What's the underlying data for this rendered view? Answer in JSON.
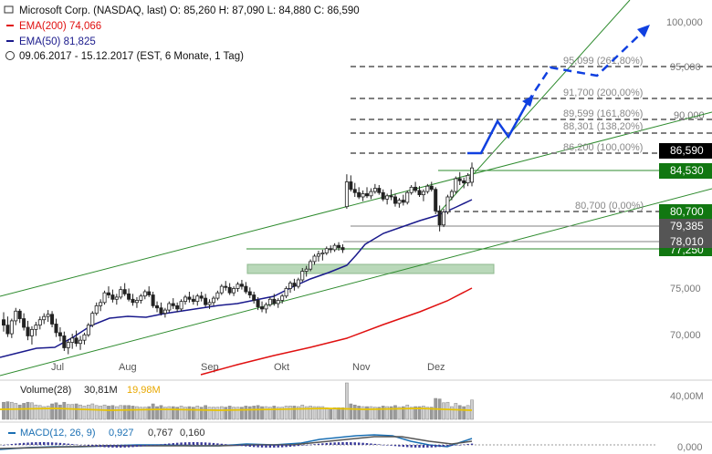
{
  "header": {
    "line1": "Microsoft Corp. (NASDAQ, last)  O: 85,260  H: 87,090  L: 84,880  C: 86,590",
    "ema200": "EMA(200)  74,066",
    "ema50": "EMA(50)  81,825",
    "range": "09.06.2017 - 15.12.2017  (EST, 6 Monate, 1 Tag)"
  },
  "colors": {
    "ema200": "#e01010",
    "ema50": "#1a1a8c",
    "trend": "#2e8b2e",
    "fib": "#808080",
    "projection": "#1040e0",
    "last_price_box": "#000000",
    "support_box": "#117711",
    "zone": "#b9d8b9"
  },
  "chart_data": {
    "type": "candlestick",
    "x_labels": [
      "Jul",
      "Aug",
      "Sep",
      "Okt",
      "Nov",
      "Dez"
    ],
    "y_ticks": [
      "100,000",
      "95,000",
      "90,000",
      "75,000",
      "70,000"
    ],
    "ylim": [
      68.5,
      101.5
    ],
    "candles": [
      [
        72.5,
        73.2,
        71.4,
        72.0
      ],
      [
        72.0,
        72.8,
        70.9,
        71.2
      ],
      [
        71.2,
        72.6,
        70.8,
        72.4
      ],
      [
        72.4,
        73.6,
        72.0,
        73.3
      ],
      [
        73.3,
        73.5,
        72.2,
        72.6
      ],
      [
        72.6,
        73.1,
        71.5,
        71.8
      ],
      [
        71.8,
        72.4,
        70.6,
        71.0
      ],
      [
        71.0,
        71.9,
        70.2,
        71.6
      ],
      [
        71.6,
        72.3,
        71.0,
        72.0
      ],
      [
        72.0,
        72.8,
        71.6,
        72.5
      ],
      [
        72.5,
        73.1,
        72.1,
        72.8
      ],
      [
        72.8,
        73.4,
        72.3,
        73.0
      ],
      [
        73.0,
        73.3,
        71.8,
        72.1
      ],
      [
        72.1,
        72.6,
        70.9,
        71.3
      ],
      [
        71.3,
        71.8,
        70.5,
        71.0
      ],
      [
        71.0,
        71.4,
        69.6,
        69.9
      ],
      [
        69.9,
        70.7,
        69.3,
        70.4
      ],
      [
        70.4,
        71.2,
        69.8,
        70.8
      ],
      [
        70.8,
        71.5,
        70.0,
        70.3
      ],
      [
        70.3,
        71.0,
        69.7,
        70.6
      ],
      [
        70.6,
        71.3,
        70.2,
        71.1
      ],
      [
        71.1,
        72.2,
        70.9,
        72.0
      ],
      [
        72.0,
        73.3,
        71.8,
        73.1
      ],
      [
        73.1,
        74.1,
        72.9,
        73.8
      ],
      [
        73.8,
        74.4,
        73.3,
        74.1
      ],
      [
        74.1,
        75.2,
        73.9,
        75.0
      ],
      [
        75.0,
        75.6,
        74.5,
        74.8
      ],
      [
        74.8,
        75.3,
        74.1,
        74.4
      ],
      [
        74.4,
        74.9,
        73.9,
        74.6
      ],
      [
        74.6,
        75.6,
        74.4,
        75.3
      ],
      [
        75.3,
        75.9,
        74.7,
        74.9
      ],
      [
        74.9,
        75.4,
        74.2,
        74.4
      ],
      [
        74.4,
        74.9,
        73.8,
        74.1
      ],
      [
        74.1,
        74.6,
        73.6,
        74.3
      ],
      [
        74.3,
        74.9,
        74.0,
        74.7
      ],
      [
        74.7,
        75.3,
        74.4,
        75.1
      ],
      [
        75.1,
        75.6,
        74.6,
        74.8
      ],
      [
        74.8,
        75.1,
        73.6,
        73.8
      ],
      [
        73.8,
        74.2,
        73.2,
        73.6
      ],
      [
        73.6,
        74.1,
        72.9,
        73.1
      ],
      [
        73.1,
        73.6,
        72.7,
        73.4
      ],
      [
        73.4,
        74.2,
        73.2,
        74.0
      ],
      [
        74.0,
        74.5,
        73.5,
        73.8
      ],
      [
        73.8,
        74.1,
        73.2,
        73.5
      ],
      [
        73.5,
        74.4,
        73.3,
        74.2
      ],
      [
        74.2,
        74.8,
        73.9,
        74.6
      ],
      [
        74.6,
        75.1,
        74.1,
        74.4
      ],
      [
        74.4,
        74.8,
        73.9,
        74.2
      ],
      [
        74.2,
        74.9,
        73.8,
        74.7
      ],
      [
        74.7,
        75.1,
        74.2,
        74.5
      ],
      [
        74.5,
        74.9,
        73.7,
        73.9
      ],
      [
        73.9,
        74.4,
        73.5,
        74.1
      ],
      [
        74.1,
        74.7,
        73.8,
        74.5
      ],
      [
        74.5,
        75.2,
        74.3,
        75.0
      ],
      [
        75.0,
        75.8,
        74.8,
        75.6
      ],
      [
        75.6,
        76.1,
        75.2,
        75.5
      ],
      [
        75.5,
        75.9,
        74.8,
        75.0
      ],
      [
        75.0,
        75.6,
        74.7,
        75.4
      ],
      [
        75.4,
        76.0,
        75.1,
        75.8
      ],
      [
        75.8,
        76.2,
        75.3,
        75.6
      ],
      [
        75.6,
        76.0,
        74.9,
        75.1
      ],
      [
        75.1,
        75.5,
        74.5,
        74.8
      ],
      [
        74.8,
        75.1,
        74.0,
        74.3
      ],
      [
        74.3,
        74.6,
        73.4,
        73.7
      ],
      [
        73.7,
        74.2,
        73.2,
        73.5
      ],
      [
        73.5,
        74.1,
        73.1,
        73.9
      ],
      [
        73.9,
        74.6,
        73.7,
        74.4
      ],
      [
        74.4,
        74.9,
        73.8,
        74.0
      ],
      [
        74.0,
        74.5,
        73.6,
        74.3
      ],
      [
        74.3,
        74.9,
        74.0,
        74.7
      ],
      [
        74.7,
        75.6,
        74.5,
        75.4
      ],
      [
        75.4,
        76.1,
        75.0,
        75.9
      ],
      [
        75.9,
        76.3,
        75.2,
        75.6
      ],
      [
        75.6,
        76.4,
        75.4,
        76.2
      ],
      [
        76.2,
        77.3,
        76.0,
        77.0
      ],
      [
        77.0,
        77.5,
        76.5,
        77.2
      ],
      [
        77.2,
        78.1,
        77.0,
        77.9
      ],
      [
        77.9,
        78.6,
        77.6,
        78.4
      ],
      [
        78.4,
        78.9,
        77.9,
        78.6
      ],
      [
        78.6,
        79.0,
        78.0,
        78.7
      ],
      [
        78.7,
        79.3,
        78.5,
        79.1
      ],
      [
        79.1,
        79.4,
        78.7,
        79.0
      ],
      [
        79.0,
        79.6,
        78.8,
        79.4
      ],
      [
        79.4,
        79.7,
        78.9,
        79.2
      ],
      [
        79.2,
        79.5,
        78.7,
        79.0
      ],
      [
        83.0,
        86.0,
        82.8,
        85.3
      ],
      [
        85.3,
        85.9,
        84.4,
        84.6
      ],
      [
        84.6,
        85.2,
        83.9,
        84.3
      ],
      [
        84.3,
        84.8,
        83.7,
        83.9
      ],
      [
        83.9,
        84.5,
        83.5,
        84.2
      ],
      [
        84.2,
        84.8,
        83.8,
        84.0
      ],
      [
        84.0,
        84.7,
        83.7,
        84.4
      ],
      [
        84.4,
        85.1,
        84.2,
        84.7
      ],
      [
        84.7,
        85.0,
        84.1,
        84.3
      ],
      [
        84.3,
        84.6,
        83.5,
        83.7
      ],
      [
        83.7,
        84.2,
        83.2,
        84.0
      ],
      [
        84.0,
        84.6,
        83.6,
        83.9
      ],
      [
        83.9,
        84.2,
        83.0,
        83.3
      ],
      [
        83.3,
        83.8,
        82.9,
        83.6
      ],
      [
        83.6,
        84.1,
        83.1,
        83.4
      ],
      [
        83.4,
        84.5,
        83.2,
        84.3
      ],
      [
        84.3,
        85.0,
        84.1,
        84.8
      ],
      [
        84.8,
        85.3,
        84.3,
        84.5
      ],
      [
        84.5,
        84.9,
        83.9,
        84.1
      ],
      [
        84.1,
        84.6,
        83.5,
        84.4
      ],
      [
        84.4,
        85.1,
        84.2,
        84.9
      ],
      [
        84.9,
        85.3,
        84.4,
        84.6
      ],
      [
        84.6,
        84.8,
        82.3,
        82.6
      ],
      [
        82.6,
        83.1,
        80.7,
        81.3
      ],
      [
        81.3,
        82.8,
        81.1,
        82.5
      ],
      [
        82.5,
        84.1,
        82.3,
        83.9
      ],
      [
        83.9,
        84.6,
        83.6,
        84.4
      ],
      [
        84.4,
        85.8,
        84.2,
        85.6
      ],
      [
        85.6,
        86.2,
        85.0,
        85.4
      ],
      [
        85.4,
        85.7,
        84.7,
        85.2
      ],
      [
        85.2,
        86.1,
        84.9,
        85.9
      ],
      [
        85.26,
        87.09,
        84.88,
        86.59
      ]
    ]
  },
  "price_axis": {
    "last_price": "86,590",
    "level_84530": "84,530",
    "level_80700": "80,700",
    "level_79385": "79,385",
    "level_78010": "78,010",
    "level_77250": "77,250"
  },
  "fib_labels": {
    "f261": "95,099 (261,80%)",
    "f200": "91,700 (200,00%)",
    "f161": "89,599 (161,80%)",
    "f138": "88,301 (138,20%)",
    "f100": "86,200 (100,00%)",
    "f0": "80,700 (0,00%)"
  },
  "volume_panel": {
    "label_name": "Volume(28)",
    "label_value": "30,81M",
    "label_avg": "19,98M",
    "axis_label": "40,00M"
  },
  "macd_panel": {
    "label_name": "MACD(12, 26, 9)",
    "label_value": "0,927",
    "label_signal": "0,767",
    "label_hist": "0,160",
    "axis_label": "0,000"
  }
}
